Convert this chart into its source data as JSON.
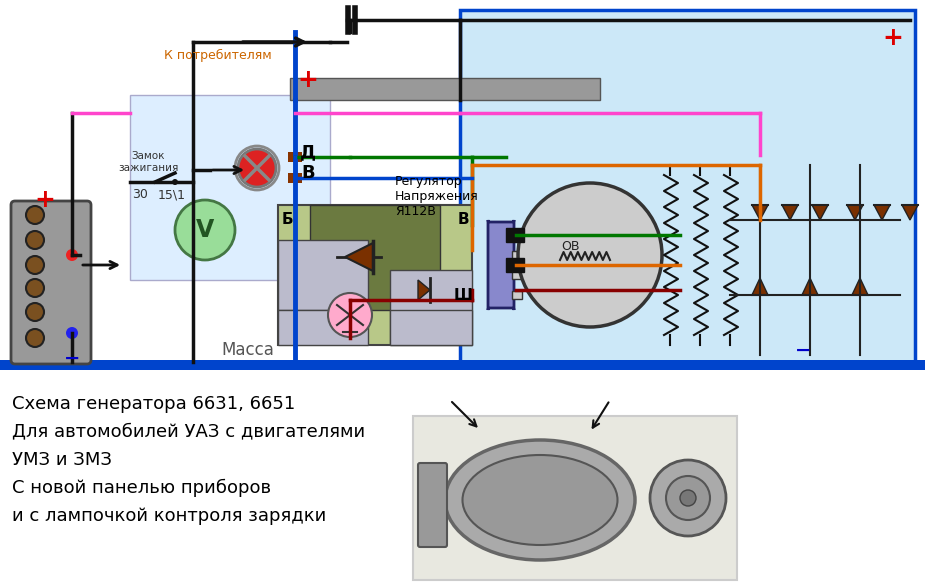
{
  "title": "Схема генератора 6631, 6651\nДля автомобилей УАЗ с двигателями\nУМЗ и ЗМЗ\nС новой панелью приборов\nи с лампочкой контроля зарядки",
  "label_k_potrebitelyam": "К потребителям",
  "label_zamok": "Замок\nзажигания",
  "label_30": "30",
  "label_151": "15\\1",
  "label_d": "Д",
  "label_b_terminal": "В",
  "label_massa": "Масса",
  "label_regulator": "Регулятор\nНапряжения\nЯ112В",
  "label_b2": "Б",
  "label_v2": "В",
  "label_sh": "Ш",
  "label_ov": "ОВ",
  "bg_color": "#ffffff",
  "light_blue": "#cce8f8",
  "blue_wire": "#0044cc",
  "pink_wire": "#ff44cc",
  "green_wire": "#007700",
  "orange_wire": "#dd6600",
  "dark_red_wire": "#880000",
  "black_wire": "#111111",
  "gray_bar": "#888888",
  "reg_bg": "#6b7a40",
  "reg_light_bg": "#b0c060",
  "bat_color": "#888888",
  "brown_diode": "#7a3000"
}
